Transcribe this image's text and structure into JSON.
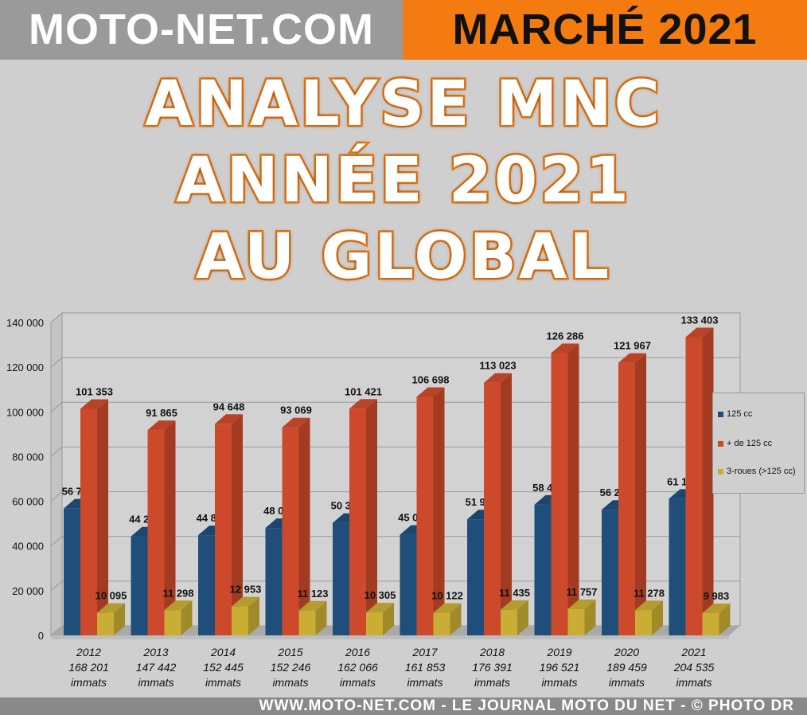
{
  "header": {
    "site": "MOTO-NET.COM",
    "title": "MARCHÉ 2021"
  },
  "overlay": {
    "line1": "ANALYSE MNC",
    "line2": "ANNÉE 2021",
    "line3": "AU GLOBAL"
  },
  "footer": "WWW.MOTO-NET.COM - LE JOURNAL MOTO DU NET - © PHOTO DR",
  "chart_data": {
    "type": "bar",
    "categories": [
      "2012",
      "2013",
      "2014",
      "2015",
      "2016",
      "2017",
      "2018",
      "2019",
      "2020",
      "2021"
    ],
    "category_totals": [
      "168 201",
      "147 442",
      "152 445",
      "152 246",
      "162 066",
      "161 853",
      "176 391",
      "196 521",
      "189 459",
      "204 535"
    ],
    "category_unit": "immats",
    "series": [
      {
        "name": "125 cc",
        "color": "#1f4e7a",
        "values": [
          56753,
          44279,
          44844,
          48054,
          50340,
          45033,
          51933,
          58478,
          56214,
          61149
        ]
      },
      {
        "name": "+ de 125 cc",
        "color": "#cc4a2b",
        "values": [
          101353,
          91865,
          94648,
          93069,
          101421,
          106698,
          113023,
          126286,
          121967,
          133403
        ]
      },
      {
        "name": "3-roues (>125 cc)",
        "color": "#c9ad34",
        "values": [
          10095,
          11298,
          12953,
          11123,
          10305,
          10122,
          11435,
          11757,
          11278,
          9983
        ]
      }
    ],
    "ylim": [
      0,
      140000
    ],
    "yticks": [
      "0",
      "20 000",
      "40 000",
      "60 000",
      "80 000",
      "100 000",
      "120 000",
      "140 000"
    ],
    "grid": true,
    "legend": "right",
    "style": "3d-clustered-bar"
  }
}
